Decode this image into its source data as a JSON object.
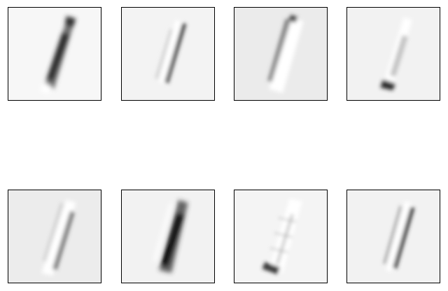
{
  "panels": [
    {
      "index": 1,
      "background": "#f7f7f7",
      "stroke": "#3a3a3a",
      "highlight": "#ffffff"
    },
    {
      "index": 2,
      "background": "#f3f3f3",
      "stroke": "#5a5a5a",
      "highlight": "#ffffff"
    },
    {
      "index": 3,
      "background": "#ebebeb",
      "stroke": "#8a8a8a",
      "highlight": "#ffffff"
    },
    {
      "index": 4,
      "background": "#f2f2f2",
      "stroke": "#4a4a4a",
      "highlight": "#ffffff"
    },
    {
      "index": 5,
      "background": "#ececec",
      "stroke": "#7a7a7a",
      "highlight": "#ffffff"
    },
    {
      "index": 6,
      "background": "#f2f2f2",
      "stroke": "#1e1e1e",
      "highlight": "#ffffff"
    },
    {
      "index": 7,
      "background": "#f4f4f4",
      "stroke": "#3c3c3c",
      "highlight": "#ffffff"
    },
    {
      "index": 8,
      "background": "#f2f2f2",
      "stroke": "#2c2c2c",
      "highlight": "#ffffff"
    }
  ]
}
